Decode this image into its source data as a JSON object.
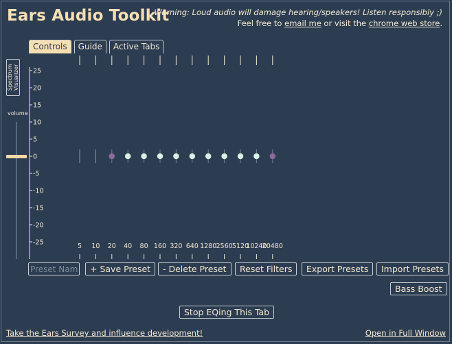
{
  "app": {
    "title": "Ears Audio Toolkit",
    "warning": "Warning: Loud audio will damage hearing/speakers! Listen responsibly ;)",
    "intro_text": "Feel free to ",
    "email_link": "email me",
    "middle_text": " or visit the ",
    "store_link": "chrome web store",
    "end_text": "."
  },
  "tabs": [
    {
      "label": "Controls",
      "active": true
    },
    {
      "label": "Guide",
      "active": false
    },
    {
      "label": "Active Tabs",
      "active": false
    }
  ],
  "sidebar": {
    "spectrum_label_line1": "Spectrum",
    "spectrum_label_line2": "Visualizer",
    "volume_label": "volume",
    "volume_level": 0.24
  },
  "eq": {
    "gain_ticks": [
      25,
      20,
      15,
      10,
      5,
      0,
      -5,
      -10,
      -15,
      -20,
      -25
    ],
    "freq_labels": [
      "5",
      "10",
      "20",
      "40",
      "80",
      "160",
      "320",
      "640",
      "1280",
      "2560",
      "5120",
      "10240",
      "20480"
    ],
    "nodes": [
      {
        "freq": 20,
        "gain": 0,
        "type": "shelf"
      },
      {
        "freq": 40,
        "gain": 0,
        "type": "peak"
      },
      {
        "freq": 80,
        "gain": 0,
        "type": "peak"
      },
      {
        "freq": 160,
        "gain": 0,
        "type": "peak"
      },
      {
        "freq": 320,
        "gain": 0,
        "type": "peak"
      },
      {
        "freq": 640,
        "gain": 0,
        "type": "peak"
      },
      {
        "freq": 1280,
        "gain": 0,
        "type": "peak"
      },
      {
        "freq": 2560,
        "gain": 0,
        "type": "peak"
      },
      {
        "freq": 5120,
        "gain": 0,
        "type": "peak"
      },
      {
        "freq": 10240,
        "gain": 0,
        "type": "peak"
      },
      {
        "freq": 20480,
        "gain": 0,
        "type": "shelf"
      }
    ],
    "colors": {
      "peak": "#d8f5e4",
      "shelf": "#8c6a9c",
      "axis": "#f3e7cf"
    }
  },
  "presets": {
    "name_placeholder": "Preset Name",
    "save_label": "+ Save Preset",
    "delete_label": "- Delete Preset",
    "reset_label": "Reset Filters",
    "export_label": "Export Presets",
    "import_label": "Import Presets",
    "bass_boost_label": "Bass Boost"
  },
  "stop_button_label": "Stop EQing This Tab",
  "footer": {
    "survey_link": "Take the Ears Survey and influence development!",
    "fullwindow_link": "Open in Full Window"
  }
}
